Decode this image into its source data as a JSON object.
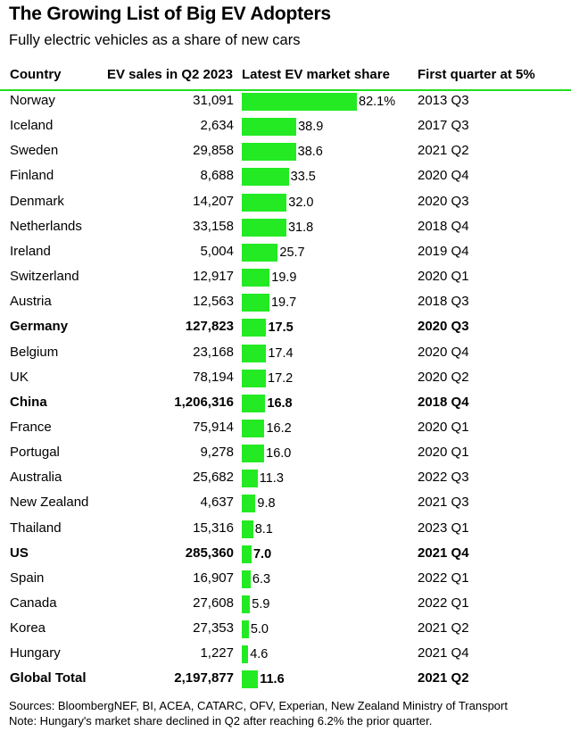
{
  "title": "The Growing List of Big EV Adopters",
  "subtitle": "Fully electric vehicles as a share of new cars",
  "columns": {
    "country": "Country",
    "sales": "EV sales in Q2 2023",
    "share": "Latest EV market share",
    "quarter": "First quarter at 5%"
  },
  "colors": {
    "bar": "#23ea23",
    "rule": "#1fdf1f"
  },
  "chart_data": {
    "type": "table",
    "share_max": 82.1,
    "rows": [
      {
        "country": "Norway",
        "sales": "31,091",
        "share": 82.1,
        "share_label": "82.1%",
        "quarter": "2013 Q3",
        "bold": false
      },
      {
        "country": "Iceland",
        "sales": "2,634",
        "share": 38.9,
        "share_label": "38.9",
        "quarter": "2017 Q3",
        "bold": false
      },
      {
        "country": "Sweden",
        "sales": "29,858",
        "share": 38.6,
        "share_label": "38.6",
        "quarter": "2021 Q2",
        "bold": false
      },
      {
        "country": "Finland",
        "sales": "8,688",
        "share": 33.5,
        "share_label": "33.5",
        "quarter": "2020 Q4",
        "bold": false
      },
      {
        "country": "Denmark",
        "sales": "14,207",
        "share": 32.0,
        "share_label": "32.0",
        "quarter": "2020 Q3",
        "bold": false
      },
      {
        "country": "Netherlands",
        "sales": "33,158",
        "share": 31.8,
        "share_label": "31.8",
        "quarter": "2018 Q4",
        "bold": false
      },
      {
        "country": "Ireland",
        "sales": "5,004",
        "share": 25.7,
        "share_label": "25.7",
        "quarter": "2019 Q4",
        "bold": false
      },
      {
        "country": "Switzerland",
        "sales": "12,917",
        "share": 19.9,
        "share_label": "19.9",
        "quarter": "2020 Q1",
        "bold": false
      },
      {
        "country": "Austria",
        "sales": "12,563",
        "share": 19.7,
        "share_label": "19.7",
        "quarter": "2018 Q3",
        "bold": false
      },
      {
        "country": "Germany",
        "sales": "127,823",
        "share": 17.5,
        "share_label": "17.5",
        "quarter": "2020 Q3",
        "bold": true
      },
      {
        "country": "Belgium",
        "sales": "23,168",
        "share": 17.4,
        "share_label": "17.4",
        "quarter": "2020 Q4",
        "bold": false
      },
      {
        "country": "UK",
        "sales": "78,194",
        "share": 17.2,
        "share_label": "17.2",
        "quarter": "2020 Q2",
        "bold": false
      },
      {
        "country": "China",
        "sales": "1,206,316",
        "share": 16.8,
        "share_label": "16.8",
        "quarter": "2018 Q4",
        "bold": true
      },
      {
        "country": "France",
        "sales": "75,914",
        "share": 16.2,
        "share_label": "16.2",
        "quarter": "2020 Q1",
        "bold": false
      },
      {
        "country": "Portugal",
        "sales": "9,278",
        "share": 16.0,
        "share_label": "16.0",
        "quarter": "2020 Q1",
        "bold": false
      },
      {
        "country": "Australia",
        "sales": "25,682",
        "share": 11.3,
        "share_label": "11.3",
        "quarter": "2022 Q3",
        "bold": false
      },
      {
        "country": "New Zealand",
        "sales": "4,637",
        "share": 9.8,
        "share_label": "9.8",
        "quarter": "2021 Q3",
        "bold": false
      },
      {
        "country": "Thailand",
        "sales": "15,316",
        "share": 8.1,
        "share_label": "8.1",
        "quarter": "2023 Q1",
        "bold": false
      },
      {
        "country": "US",
        "sales": "285,360",
        "share": 7.0,
        "share_label": "7.0",
        "quarter": "2021 Q4",
        "bold": true
      },
      {
        "country": "Spain",
        "sales": "16,907",
        "share": 6.3,
        "share_label": "6.3",
        "quarter": "2022 Q1",
        "bold": false
      },
      {
        "country": "Canada",
        "sales": "27,608",
        "share": 5.9,
        "share_label": "5.9",
        "quarter": "2022 Q1",
        "bold": false
      },
      {
        "country": "Korea",
        "sales": "27,353",
        "share": 5.0,
        "share_label": "5.0",
        "quarter": "2021 Q2",
        "bold": false
      },
      {
        "country": "Hungary",
        "sales": "1,227",
        "share": 4.6,
        "share_label": "4.6",
        "quarter": "2021 Q4",
        "bold": false
      },
      {
        "country": "Global Total",
        "sales": "2,197,877",
        "share": 11.6,
        "share_label": "11.6",
        "quarter": "2021 Q2",
        "bold": true
      }
    ]
  },
  "footer": {
    "sources": "Sources: BloombergNEF, BI, ACEA, CATARC, OFV, Experian, New Zealand Ministry of Transport",
    "note": "Note: Hungary's market share declined in Q2 after reaching 6.2% the prior quarter."
  }
}
